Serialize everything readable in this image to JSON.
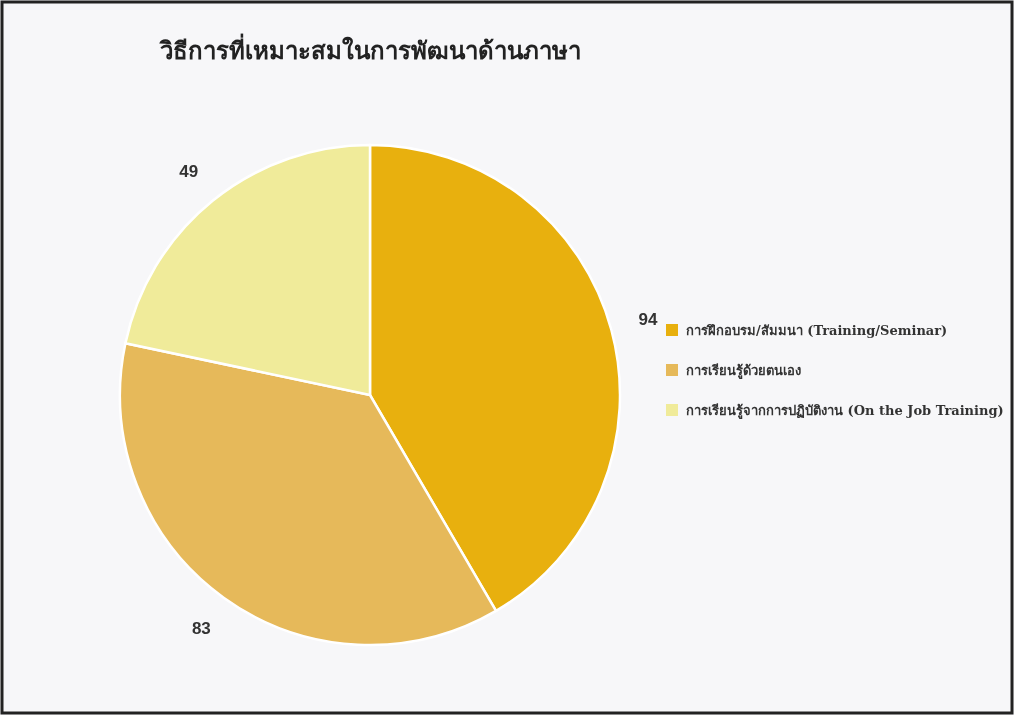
{
  "chart_data": {
    "type": "pie",
    "title": "วิธีการที่เหมาะสมในการพัฒนาด้านภาษา",
    "categories": [
      "การฝึกอบรม/สัมมนา (Training/Seminar)",
      "การเรียนรู้ด้วยตนเอง",
      "การเรียนรู้จากการปฏิบัติงาน  (On the Job Training)"
    ],
    "values": [
      94,
      83,
      49
    ],
    "colors": [
      "#e8b00e",
      "#e6b95a",
      "#f0eb9a"
    ],
    "data_labels": true,
    "legend": "right"
  }
}
